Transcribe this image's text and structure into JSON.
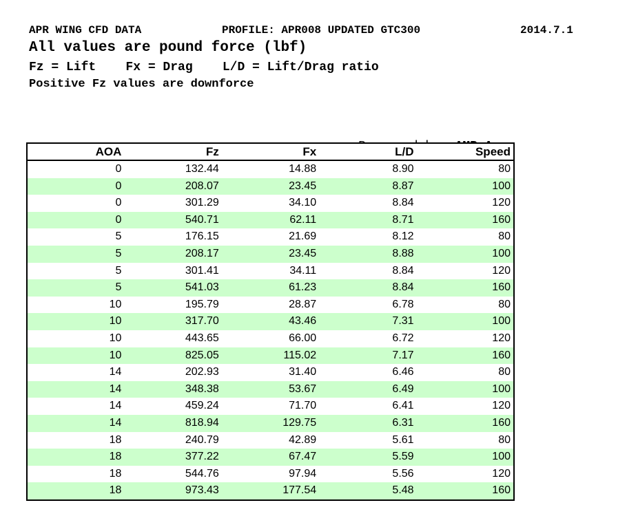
{
  "header": {
    "title": "APR WING CFD DATA",
    "profile": "PROFILE: APR008 UPDATED GTC300",
    "date": "2014.7.1",
    "subtitle": "All values are pound force (lbf)",
    "legend": "Fz = Lift    Fx = Drag    L/D = Lift/Drag ratio",
    "note": "Positive Fz values are downforce"
  },
  "prepared_by": {
    "label": "Prepared by: ",
    "value": "AMB Aero"
  },
  "colors": {
    "row_alt_green": "#ccffcc",
    "row_white": "#ffffff",
    "border_black": "#000000"
  },
  "table": {
    "columns": [
      "AOA",
      "Fz",
      "Fx",
      "L/D",
      "Speed"
    ],
    "rows": [
      [
        "0",
        "132.44",
        "14.88",
        "8.90",
        "80"
      ],
      [
        "0",
        "208.07",
        "23.45",
        "8.87",
        "100"
      ],
      [
        "0",
        "301.29",
        "34.10",
        "8.84",
        "120"
      ],
      [
        "0",
        "540.71",
        "62.11",
        "8.71",
        "160"
      ],
      [
        "5",
        "176.15",
        "21.69",
        "8.12",
        "80"
      ],
      [
        "5",
        "208.17",
        "23.45",
        "8.88",
        "100"
      ],
      [
        "5",
        "301.41",
        "34.11",
        "8.84",
        "120"
      ],
      [
        "5",
        "541.03",
        "61.23",
        "8.84",
        "160"
      ],
      [
        "10",
        "195.79",
        "28.87",
        "6.78",
        "80"
      ],
      [
        "10",
        "317.70",
        "43.46",
        "7.31",
        "100"
      ],
      [
        "10",
        "443.65",
        "66.00",
        "6.72",
        "120"
      ],
      [
        "10",
        "825.05",
        "115.02",
        "7.17",
        "160"
      ],
      [
        "14",
        "202.93",
        "31.40",
        "6.46",
        "80"
      ],
      [
        "14",
        "348.38",
        "53.67",
        "6.49",
        "100"
      ],
      [
        "14",
        "459.24",
        "71.70",
        "6.41",
        "120"
      ],
      [
        "14",
        "818.94",
        "129.75",
        "6.31",
        "160"
      ],
      [
        "18",
        "240.79",
        "42.89",
        "5.61",
        "80"
      ],
      [
        "18",
        "377.22",
        "67.47",
        "5.59",
        "100"
      ],
      [
        "18",
        "544.76",
        "97.94",
        "5.56",
        "120"
      ],
      [
        "18",
        "973.43",
        "177.54",
        "5.48",
        "160"
      ]
    ]
  }
}
